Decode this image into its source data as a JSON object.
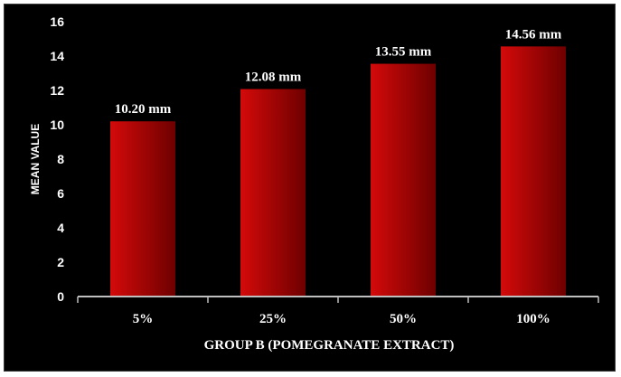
{
  "chart_data": {
    "type": "bar",
    "categories": [
      "5%",
      "25%",
      "50%",
      "100%"
    ],
    "values": [
      10.2,
      12.08,
      13.55,
      14.56
    ],
    "data_labels": [
      "10.20 mm",
      "12.08 mm",
      "13.55 mm",
      "14.56 mm"
    ],
    "xlabel": "GROUP B (POMEGRANATE EXTRACT)",
    "ylabel": "MEAN VALUE",
    "ylim": [
      0,
      16
    ],
    "yticks": [
      "0",
      "2",
      "4",
      "6",
      "8",
      "10",
      "12",
      "14",
      "16"
    ],
    "grid": false,
    "legend": "none",
    "colors": {
      "background": "#000000",
      "bar_light": "#d40a0a",
      "bar_dark": "#6e0000",
      "axis": "#bfbfbf",
      "text": "#ffffff"
    }
  }
}
